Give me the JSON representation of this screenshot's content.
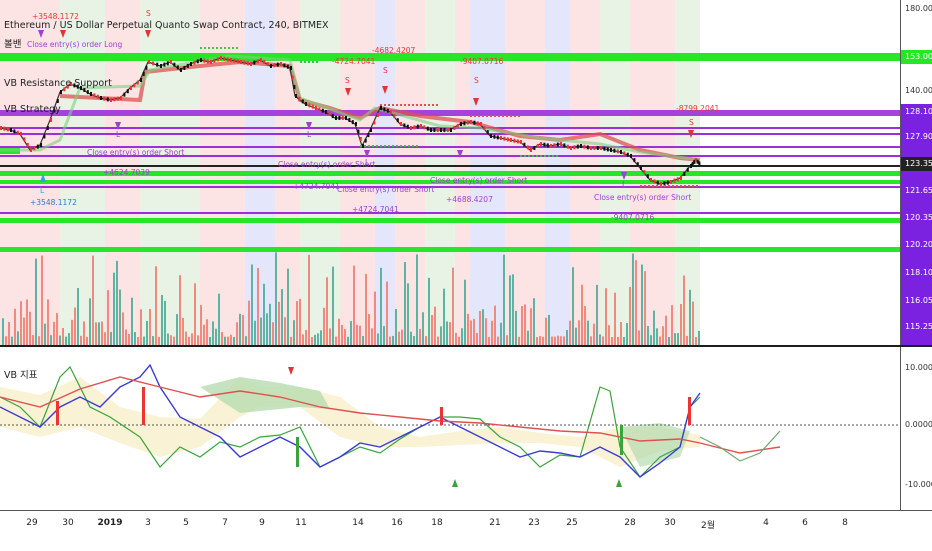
{
  "header": {
    "title": "Ethereum / US Dollar Perpetual Quanto Swap Contract, 240, BITMEX",
    "study1": "볼밴",
    "study2": "VB Resistance Support",
    "study3": "VB Strategy"
  },
  "indicator": {
    "title": "VB 지표"
  },
  "colors": {
    "green_band": "#27e627",
    "purple_band": "#9b30d9",
    "axis_purple": "#7b22e0",
    "red_bar": "#f08a80",
    "teal_bar": "#5fb3a3",
    "buy_marker": "#3aa33a",
    "sell_marker": "#e33333"
  },
  "price_axis": {
    "labels": [
      "180.00",
      "153.00",
      "140.00",
      "128.10",
      "127.90",
      "123.35",
      "121.65",
      "120.35",
      "120.20",
      "118.10",
      "116.05",
      "115.25"
    ],
    "highlighted": [
      {
        "text": "153.00",
        "color": "green"
      },
      {
        "text": "128.10",
        "color": "purple"
      },
      {
        "text": "127.90",
        "color": "purple"
      },
      {
        "text": "123.35",
        "color": "purple"
      },
      {
        "text": "121.65",
        "color": "purple"
      },
      {
        "text": "120.35",
        "color": "purple"
      },
      {
        "text": "120.20",
        "color": "purple"
      },
      {
        "text": "118.10",
        "color": "purple"
      },
      {
        "text": "116.05",
        "color": "purple"
      },
      {
        "text": "115.25",
        "color": "purple"
      }
    ]
  },
  "indicator_axis": {
    "labels": [
      "10.0000",
      "0.0000",
      "-10.0000"
    ]
  },
  "time_axis": {
    "labels": [
      "29",
      "30",
      "2019",
      "3",
      "5",
      "7",
      "9",
      "11",
      "14",
      "16",
      "18",
      "21",
      "23",
      "25",
      "28",
      "30",
      "2월",
      "4",
      "6",
      "8"
    ]
  },
  "annotations": {
    "a1": "+3548.1172",
    "a2": "Close entry(s) order Long",
    "a3": "-4724.7041",
    "a4": "-4682.4207",
    "a5": "-9407.0716",
    "a6": "Close entry(s) order Short",
    "a7": "+4624.7039",
    "a8": "+4724.7041",
    "a9": "+4688.4207",
    "a10": "+3548.1172",
    "a11": "-9407.0716",
    "a12": "-8799.2041",
    "s1": "S",
    "s2": "S",
    "s3": "S",
    "s4": "S",
    "s5": "S",
    "l1": "L",
    "l2": "L",
    "l3": "L",
    "l4": "L",
    "l5": "L"
  }
}
